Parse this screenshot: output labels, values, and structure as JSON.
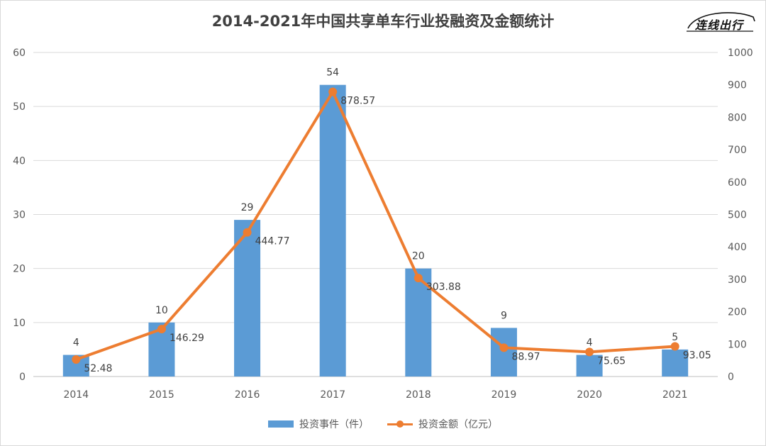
{
  "chart_data": {
    "type": "bar+line",
    "title": "2014-2021年中国共享单车行业投融资及金额统计",
    "categories": [
      "2014",
      "2015",
      "2016",
      "2017",
      "2018",
      "2019",
      "2020",
      "2021"
    ],
    "series": [
      {
        "name": "投资事件（件）",
        "type": "bar",
        "axis": "left",
        "values": [
          4,
          10,
          29,
          54,
          20,
          9,
          4,
          5
        ],
        "color": "#5b9bd5"
      },
      {
        "name": "投资金额（亿元）",
        "type": "line",
        "axis": "right",
        "values": [
          52.48,
          146.29,
          444.77,
          878.57,
          303.88,
          88.97,
          75.65,
          93.05
        ],
        "color": "#ed7d31"
      }
    ],
    "y_left": {
      "min": 0,
      "max": 60,
      "ticks": [
        "0",
        "10",
        "20",
        "30",
        "40",
        "50",
        "60"
      ]
    },
    "y_right": {
      "min": 0,
      "max": 1000,
      "ticks": [
        "0",
        "100",
        "200",
        "300",
        "400",
        "500",
        "600",
        "700",
        "800",
        "900",
        "1000"
      ]
    },
    "grid": true,
    "legend_position": "bottom"
  },
  "logo_text": "连线出行"
}
